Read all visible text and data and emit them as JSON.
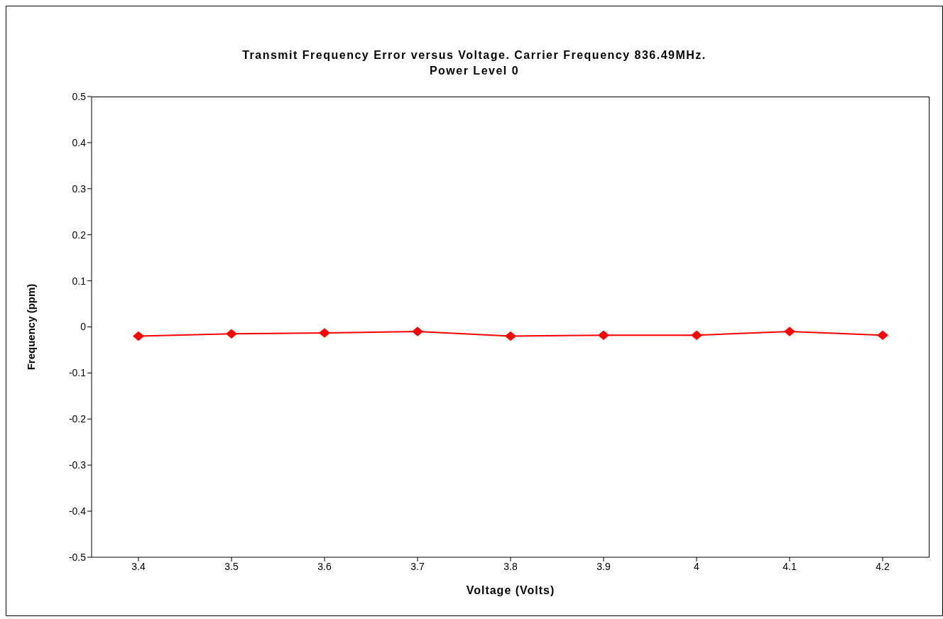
{
  "chart_data": {
    "type": "line",
    "title": "Transmit Frequency Error versus Voltage. Carrier Frequency 836.49MHz.\nPower Level 0",
    "xlabel": "Voltage (Volts)",
    "ylabel": "Frequency (ppm)",
    "categories": [
      "3.4",
      "3.5",
      "3.6",
      "3.7",
      "3.8",
      "3.9",
      "4",
      "4.1",
      "4.2"
    ],
    "series": [
      {
        "color": "#ff0000",
        "values": [
          -0.02,
          -0.015,
          -0.013,
          -0.01,
          -0.02,
          -0.018,
          -0.018,
          -0.01,
          -0.018
        ]
      }
    ],
    "ylim": [
      -0.5,
      0.5
    ],
    "yticks": [
      -0.5,
      -0.4,
      -0.3,
      -0.2,
      -0.1,
      0,
      0.1,
      0.2,
      0.3,
      0.4,
      0.5
    ],
    "marker": "diamond",
    "line_style": "solid"
  }
}
